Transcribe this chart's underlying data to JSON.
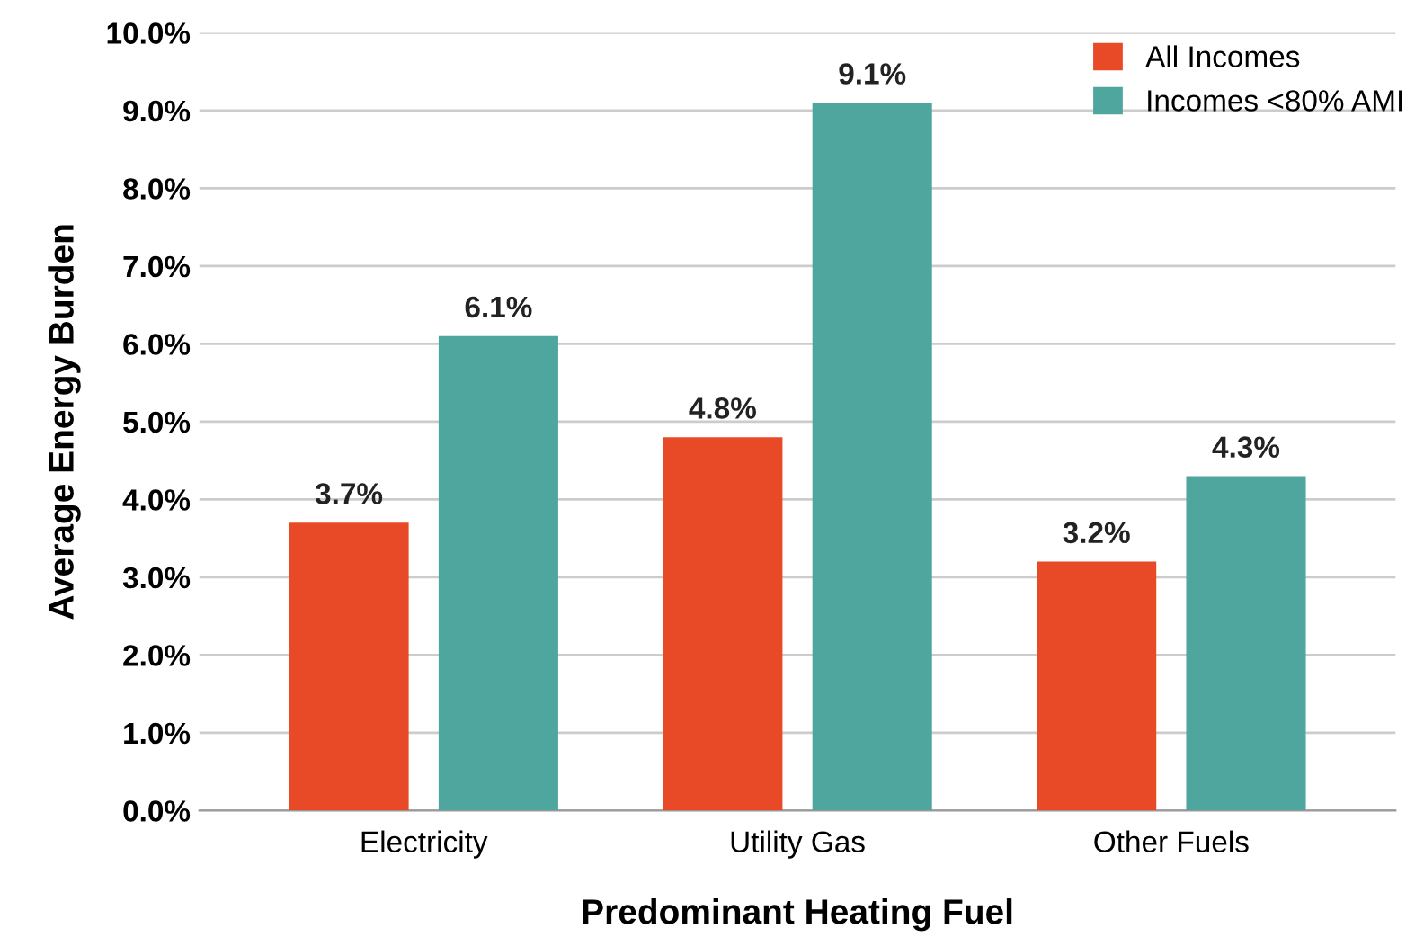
{
  "chart_data": {
    "type": "bar",
    "xlabel": "Predominant Heating Fuel",
    "ylabel": "Average Energy Burden",
    "categories": [
      "Electricity",
      "Utility Gas",
      "Other Fuels"
    ],
    "series": [
      {
        "name": "All Incomes",
        "color": "#e84a27",
        "values": [
          3.7,
          4.8,
          3.2
        ],
        "value_labels": [
          "3.7%",
          "4.8%",
          "3.2%"
        ]
      },
      {
        "name": "Incomes <80% AMI",
        "color": "#4ea69f",
        "values": [
          6.1,
          9.1,
          4.3
        ],
        "value_labels": [
          "6.1%",
          "9.1%",
          "4.3%"
        ]
      }
    ],
    "ylim": [
      0,
      10
    ],
    "yticks": [
      {
        "value": 0,
        "label": "0.0%"
      },
      {
        "value": 1,
        "label": "1.0%"
      },
      {
        "value": 2,
        "label": "2.0%"
      },
      {
        "value": 3,
        "label": "3.0%"
      },
      {
        "value": 4,
        "label": "4.0%"
      },
      {
        "value": 5,
        "label": "5.0%"
      },
      {
        "value": 6,
        "label": "6.0%"
      },
      {
        "value": 7,
        "label": "7.0%"
      },
      {
        "value": 8,
        "label": "8.0%"
      },
      {
        "value": 9,
        "label": "9.0%"
      },
      {
        "value": 10,
        "label": "10.0%"
      }
    ],
    "grid": "y",
    "legend": "top right"
  }
}
